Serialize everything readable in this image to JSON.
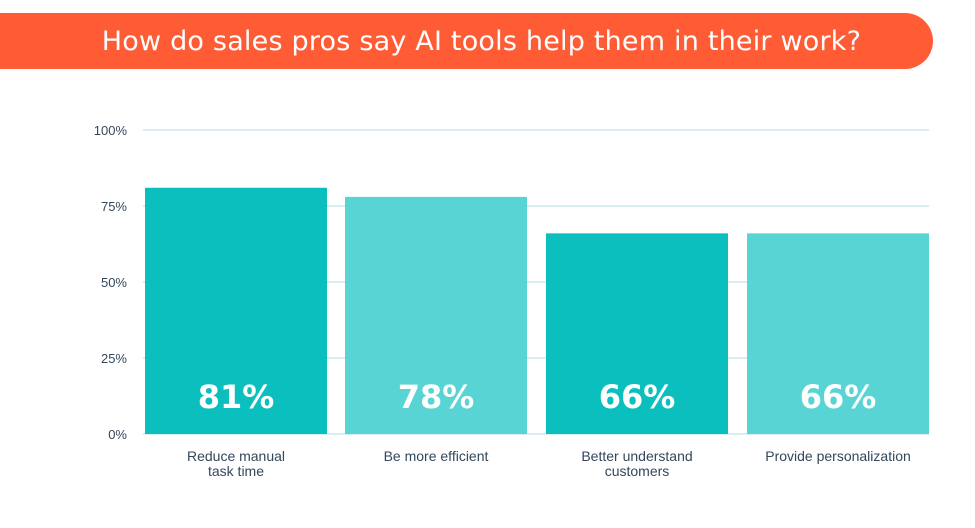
{
  "header": {
    "title": "How do sales pros say AI tools help them in their work?"
  },
  "colors": {
    "banner": "#ff5c35",
    "bar_dark": "#0bbfbf",
    "bar_light": "#58d4d4",
    "gridline": "#d8eff2",
    "text": "#33475b"
  },
  "chart_data": {
    "type": "bar",
    "title": "How do sales pros say AI tools help them in their work?",
    "categories": [
      [
        "Reduce manual",
        "task time"
      ],
      [
        "Be more efficient"
      ],
      [
        "Better understand",
        "customers"
      ],
      [
        "Provide personalization"
      ]
    ],
    "values": [
      81,
      78,
      66,
      66
    ],
    "value_labels": [
      "81%",
      "78%",
      "66%",
      "66%"
    ],
    "yticks": [
      0,
      25,
      50,
      75,
      100
    ],
    "ytick_labels": [
      "0%",
      "25%",
      "50%",
      "75%",
      "100%"
    ],
    "ylim": [
      0,
      100
    ],
    "grid": true,
    "xlabel": "",
    "ylabel": ""
  }
}
